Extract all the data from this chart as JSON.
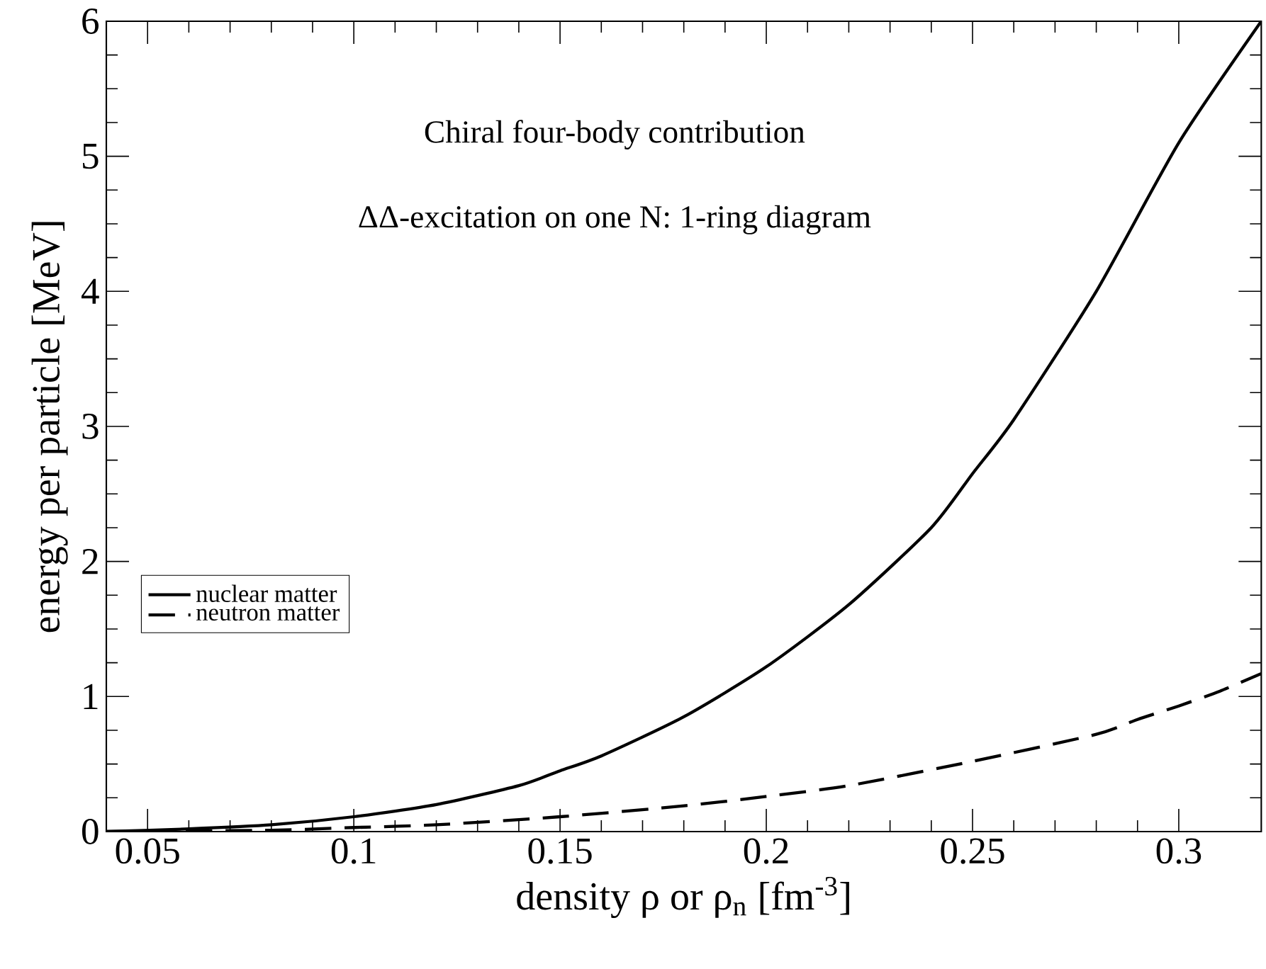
{
  "chart_data": {
    "type": "line",
    "xlabel": "density  ρ or ρ$_{n}$  [fm$^{-3}$]",
    "ylabel": "energy per particle  [MeV]",
    "annotations": [
      "Chiral four-body contribution",
      "ΔΔ-excitation on one N: 1-ring diagram"
    ],
    "xlim": [
      0.04,
      0.32
    ],
    "ylim": [
      0,
      6
    ],
    "xticks": [
      0.05,
      0.1,
      0.15,
      0.2,
      0.25,
      0.3
    ],
    "yticks": [
      0,
      1,
      2,
      3,
      4,
      5,
      6
    ],
    "grid": false,
    "legend": "left",
    "marker": "none",
    "series": [
      {
        "name": "nuclear matter",
        "color": "#000000",
        "line_style": "solid",
        "x": [
          0.04,
          0.06,
          0.08,
          0.1,
          0.12,
          0.14,
          0.15,
          0.16,
          0.18,
          0.2,
          0.22,
          0.24,
          0.25,
          0.26,
          0.28,
          0.3,
          0.32
        ],
        "values": [
          0,
          0.02,
          0.05,
          0.11,
          0.2,
          0.34,
          0.45,
          0.56,
          0.85,
          1.22,
          1.68,
          2.25,
          2.65,
          3.05,
          4.0,
          5.1,
          6.0
        ]
      },
      {
        "name": "neutron matter",
        "color": "#000000",
        "line_style": "dashed",
        "x": [
          0.04,
          0.08,
          0.1,
          0.12,
          0.15,
          0.18,
          0.2,
          0.22,
          0.25,
          0.28,
          0.29,
          0.3,
          0.31,
          0.32
        ],
        "values": [
          0,
          0.01,
          0.03,
          0.05,
          0.11,
          0.19,
          0.26,
          0.34,
          0.52,
          0.72,
          0.83,
          0.93,
          1.04,
          1.17
        ]
      }
    ]
  }
}
